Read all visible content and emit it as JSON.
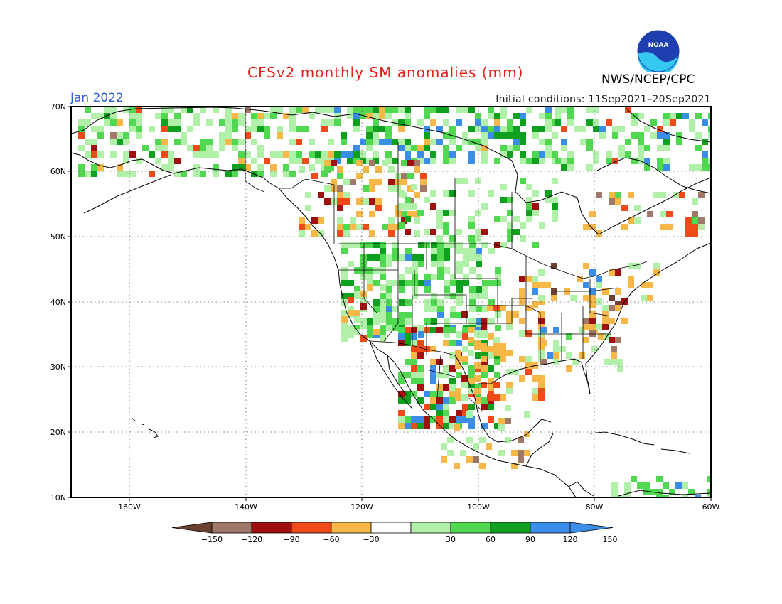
{
  "header": {
    "title": "CFSv2 monthly SM anomalies (mm)",
    "agency": "NWS/NCEP/CPC",
    "month": "Jan 2022",
    "initial_conditions": "Initial conditions: 11Sep2021–20Sep2021",
    "logo_text": "NOAA"
  },
  "map": {
    "lon_range": [
      -172,
      -60
    ],
    "lat_range": [
      10,
      70
    ],
    "lat_labels": [
      "70N",
      "60N",
      "50N",
      "40N",
      "30N",
      "20N",
      "10N"
    ],
    "lon_labels": [
      "160W",
      "140W",
      "120W",
      "100W",
      "80W",
      "60W"
    ],
    "grid": "dotted",
    "land_color": "#ffffff",
    "ocean_color": "#ffffff"
  },
  "legend": {
    "unit": "mm",
    "tick_labels": [
      "−150",
      "−120",
      "−90",
      "−60",
      "−30",
      "30",
      "60",
      "90",
      "120",
      "150"
    ],
    "bins": [
      {
        "range": "< -150",
        "color": "#6b4030"
      },
      {
        "range": "-150 to -120",
        "color": "#a07868"
      },
      {
        "range": "-120 to -90",
        "color": "#a01010"
      },
      {
        "range": "-90 to -60",
        "color": "#f04a18"
      },
      {
        "range": "-60 to -30",
        "color": "#f8b848"
      },
      {
        "range": "-30 to 30",
        "color": "#ffffff"
      },
      {
        "range": "30 to 60",
        "color": "#b0f0a8"
      },
      {
        "range": "60 to 90",
        "color": "#50d850"
      },
      {
        "range": "90 to 120",
        "color": "#10a020"
      },
      {
        "range": "120 to 150",
        "color": "#3a8ee8"
      },
      {
        "range": "> 150",
        "color": "#3a8ee8"
      }
    ]
  },
  "colors": {
    "title": "#e8201a",
    "month": "#2f5fd8"
  }
}
